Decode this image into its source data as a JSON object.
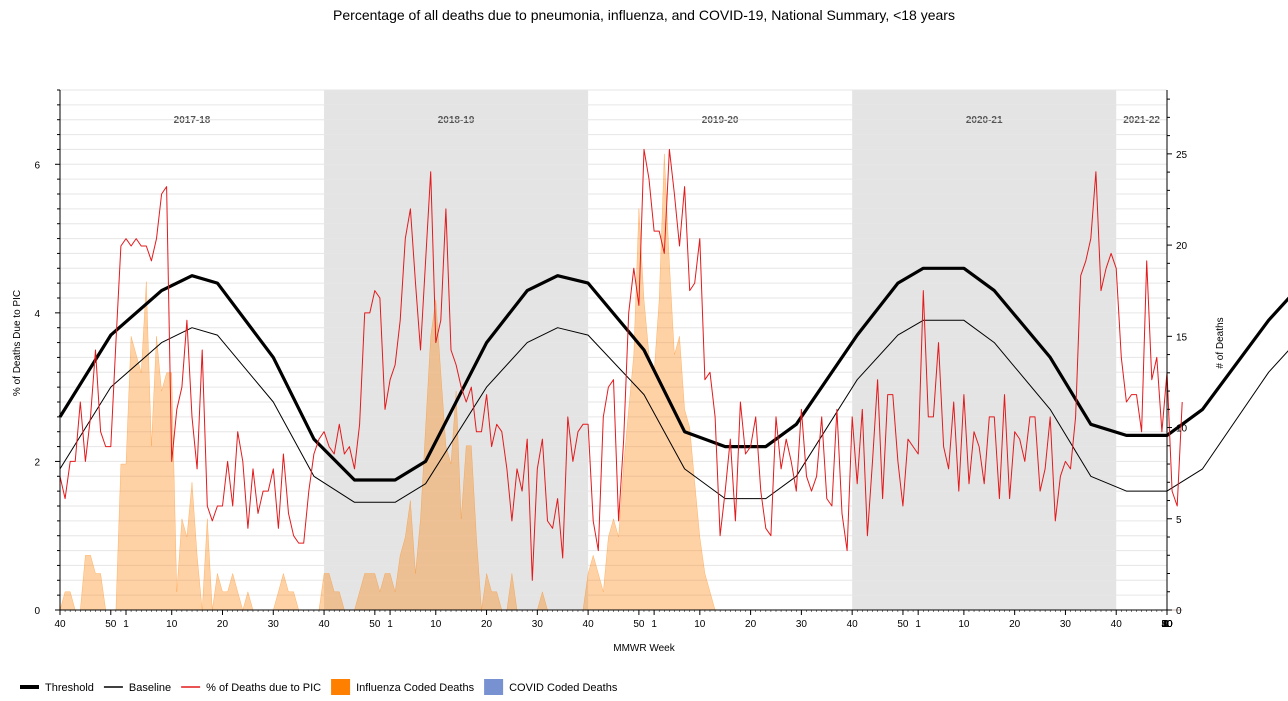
{
  "chart_data": {
    "type": "line",
    "title": "Percentage of all deaths due to pneumonia, influenza, and COVID-19, National Summary, <18 years",
    "xlabel": "MMWR Week",
    "ylabel_left": "% of Deaths Due to PIC",
    "ylabel_right": "# of Deaths",
    "ylim_left": [
      0,
      7
    ],
    "ylim_right": [
      0,
      28.5
    ],
    "left_ticks": [
      0,
      2,
      4,
      6
    ],
    "right_ticks": [
      0,
      5,
      10,
      15,
      20,
      25
    ],
    "grid": true,
    "legend_position": "bottom-left",
    "x_tick_labels": [
      "40",
      "50",
      "1",
      "10",
      "20",
      "30",
      "40",
      "50",
      "1",
      "10",
      "20",
      "30",
      "40",
      "50",
      "1",
      "10",
      "20",
      "30",
      "40",
      "50",
      "1",
      "10",
      "20",
      "30",
      "40",
      "50",
      "1",
      "10",
      "20",
      "30",
      "40",
      "50",
      "1"
    ],
    "seasons": [
      {
        "label": "2017-18",
        "shaded": false
      },
      {
        "label": "2018-19",
        "shaded": true
      },
      {
        "label": "2019-20",
        "shaded": false
      },
      {
        "label": "2020-21",
        "shaded": true
      },
      {
        "label": "2021-22",
        "shaded": false
      }
    ],
    "series": [
      {
        "name": "Threshold",
        "color": "#000000",
        "style": "thick-line",
        "points": [
          [
            0,
            2.6
          ],
          [
            10,
            3.7
          ],
          [
            20,
            4.3
          ],
          [
            26,
            4.5
          ],
          [
            31,
            4.4
          ],
          [
            42,
            3.4
          ],
          [
            50,
            2.3
          ],
          [
            58,
            1.75
          ],
          [
            66,
            1.75
          ],
          [
            72,
            2.0
          ],
          [
            84,
            3.6
          ],
          [
            92,
            4.3
          ],
          [
            98,
            4.5
          ],
          [
            104,
            4.4
          ],
          [
            115,
            3.5
          ],
          [
            123,
            2.4
          ],
          [
            131,
            2.2
          ],
          [
            139,
            2.2
          ],
          [
            145,
            2.5
          ],
          [
            157,
            3.7
          ],
          [
            165,
            4.4
          ],
          [
            170,
            4.6
          ],
          [
            178,
            4.6
          ],
          [
            184,
            4.3
          ],
          [
            195,
            3.4
          ],
          [
            203,
            2.5
          ],
          [
            210,
            2.35
          ],
          [
            218,
            2.35
          ],
          [
            225,
            2.7
          ],
          [
            238,
            3.9
          ],
          [
            246,
            4.5
          ],
          [
            252,
            4.7
          ],
          [
            258,
            4.7
          ],
          [
            264,
            4.4
          ],
          [
            275,
            3.5
          ],
          [
            283,
            2.6
          ],
          [
            290,
            2.4
          ],
          [
            298,
            2.4
          ],
          [
            305,
            2.7
          ],
          [
            318,
            3.9
          ],
          [
            326,
            4.4
          ]
        ]
      },
      {
        "name": "Baseline",
        "color": "#000000",
        "style": "thin-line",
        "points": [
          [
            0,
            1.9
          ],
          [
            10,
            3.0
          ],
          [
            20,
            3.6
          ],
          [
            26,
            3.8
          ],
          [
            31,
            3.7
          ],
          [
            42,
            2.8
          ],
          [
            50,
            1.8
          ],
          [
            58,
            1.45
          ],
          [
            66,
            1.45
          ],
          [
            72,
            1.7
          ],
          [
            84,
            3.0
          ],
          [
            92,
            3.6
          ],
          [
            98,
            3.8
          ],
          [
            104,
            3.7
          ],
          [
            115,
            2.9
          ],
          [
            123,
            1.9
          ],
          [
            131,
            1.5
          ],
          [
            139,
            1.5
          ],
          [
            145,
            1.8
          ],
          [
            157,
            3.1
          ],
          [
            165,
            3.7
          ],
          [
            170,
            3.9
          ],
          [
            178,
            3.9
          ],
          [
            184,
            3.6
          ],
          [
            195,
            2.7
          ],
          [
            203,
            1.8
          ],
          [
            210,
            1.6
          ],
          [
            218,
            1.6
          ],
          [
            225,
            1.9
          ],
          [
            238,
            3.2
          ],
          [
            246,
            3.8
          ],
          [
            252,
            4.0
          ],
          [
            258,
            4.0
          ],
          [
            264,
            3.7
          ],
          [
            275,
            2.8
          ],
          [
            283,
            1.9
          ],
          [
            290,
            1.7
          ],
          [
            298,
            1.7
          ],
          [
            305,
            2.0
          ],
          [
            318,
            3.2
          ],
          [
            326,
            3.7
          ]
        ]
      },
      {
        "name": "% of Deaths due to PIC",
        "color": "#e31a1c",
        "style": "line",
        "values": [
          1.8,
          1.5,
          2.0,
          2.0,
          2.8,
          2.0,
          2.6,
          3.5,
          2.4,
          2.2,
          2.2,
          3.6,
          4.9,
          5.0,
          4.9,
          5.0,
          4.9,
          4.9,
          4.7,
          5.0,
          5.6,
          5.7,
          2.0,
          2.7,
          3.0,
          3.9,
          2.6,
          1.9,
          3.5,
          1.4,
          1.2,
          1.4,
          1.4,
          2.0,
          1.4,
          2.4,
          2.0,
          1.1,
          1.9,
          1.3,
          1.6,
          1.6,
          1.9,
          1.1,
          2.1,
          1.3,
          1.0,
          0.9,
          0.9,
          1.6,
          2.1,
          2.3,
          2.4,
          2.2,
          2.1,
          2.5,
          2.1,
          2.2,
          1.9,
          2.5,
          4.0,
          4.0,
          4.3,
          4.2,
          2.7,
          3.1,
          3.3,
          3.9,
          5.0,
          5.4,
          4.4,
          3.5,
          4.7,
          5.9,
          3.6,
          3.9,
          5.4,
          3.5,
          3.3,
          3.0,
          2.8,
          3.0,
          2.4,
          2.4,
          2.9,
          2.2,
          2.5,
          2.4,
          1.9,
          1.2,
          1.9,
          1.6,
          2.3,
          0.4,
          1.9,
          2.3,
          1.2,
          1.1,
          1.5,
          0.7,
          2.6,
          2.0,
          2.4,
          2.5,
          2.5,
          1.2,
          0.8,
          2.6,
          3.0,
          3.1,
          1.2,
          2.3,
          4.0,
          4.6,
          4.1,
          6.2,
          5.8,
          5.1,
          5.1,
          4.8,
          6.2,
          5.6,
          4.9,
          5.7,
          4.3,
          4.4,
          5.0,
          3.1,
          3.2,
          2.6,
          1.0,
          1.6,
          2.3,
          1.2,
          2.8,
          2.1,
          2.2,
          2.6,
          1.6,
          1.1,
          1.0,
          2.6,
          1.9,
          2.3,
          2.0,
          1.6,
          2.7,
          1.8,
          1.6,
          1.8,
          2.6,
          1.5,
          1.4,
          2.7,
          1.3,
          0.8,
          2.6,
          1.7,
          2.7,
          1.0,
          2.0,
          3.1,
          1.5,
          2.9,
          2.9,
          2.0,
          1.4,
          2.3,
          2.2,
          2.1,
          4.3,
          2.6,
          2.6,
          3.6,
          2.2,
          1.9,
          2.8,
          1.6,
          2.9,
          1.7,
          2.4,
          2.2,
          1.7,
          2.6,
          2.6,
          1.5,
          2.9,
          1.5,
          2.4,
          2.3,
          2.0,
          2.6,
          2.6,
          1.6,
          1.9,
          2.6,
          1.2,
          1.8,
          2.0,
          1.9,
          2.6,
          4.5,
          4.7,
          5.0,
          5.9,
          4.3,
          4.6,
          4.8,
          4.6,
          3.4,
          2.8,
          2.9,
          2.9,
          2.4,
          4.7,
          3.1,
          3.4,
          2.4,
          3.2,
          1.6,
          1.4,
          2.8
        ]
      },
      {
        "name": "Influenza Coded Deaths",
        "color": "#ff7f00",
        "style": "area",
        "axis": "right",
        "values": [
          0,
          1,
          1,
          0,
          0,
          3,
          3,
          2,
          2,
          0,
          0,
          0,
          8,
          8,
          15,
          14,
          13,
          18,
          9,
          15,
          12,
          13,
          13,
          1,
          5,
          4,
          7,
          3,
          0,
          5,
          0,
          2,
          1,
          1,
          2,
          1,
          0,
          1,
          0,
          0,
          0,
          0,
          0,
          1,
          2,
          1,
          1,
          0,
          0,
          0,
          0,
          0,
          2,
          2,
          1,
          1,
          0,
          0,
          0,
          1,
          2,
          2,
          2,
          1,
          2,
          2,
          1,
          3,
          4,
          6,
          2,
          5,
          10,
          15,
          17,
          13,
          9,
          8,
          12,
          5,
          9,
          9,
          4,
          0,
          2,
          1,
          1,
          0,
          0,
          2,
          0,
          0,
          0,
          0,
          0,
          1,
          0,
          0,
          0,
          0,
          0,
          0,
          0,
          0,
          2,
          3,
          2,
          1,
          4,
          5,
          4,
          8,
          11,
          14,
          22,
          17,
          14,
          13,
          17,
          25,
          19,
          14,
          15,
          11,
          10,
          7,
          4,
          2,
          1,
          0,
          0,
          0,
          0,
          0,
          0,
          0,
          0,
          0,
          0,
          0,
          0,
          0,
          0,
          0,
          0,
          0,
          0,
          0,
          0,
          0,
          0,
          0,
          0,
          0,
          0,
          0,
          0,
          0,
          0,
          0,
          0,
          0,
          0,
          0,
          0,
          0,
          0,
          0,
          0,
          0,
          0,
          0,
          0,
          0,
          0,
          0,
          0,
          0,
          0,
          0,
          0,
          0,
          0,
          0,
          0,
          0,
          0,
          0,
          0,
          0,
          0,
          0,
          0,
          0,
          0,
          0,
          0,
          0,
          0,
          0,
          0,
          0,
          0,
          0,
          0,
          0,
          0,
          0,
          0,
          0,
          0,
          0,
          0,
          0,
          0,
          0,
          0,
          0,
          0,
          0,
          0,
          0
        ]
      },
      {
        "name": "COVID Coded Deaths",
        "color": "#7891d0",
        "style": "area",
        "axis": "right",
        "values": [
          0,
          0,
          0,
          0,
          0,
          0,
          0,
          0,
          0,
          0,
          0,
          0,
          0,
          0,
          0,
          0,
          0,
          0,
          0,
          0,
          0,
          0,
          0,
          0,
          0,
          0,
          0,
          0,
          0,
          0,
          0,
          0,
          0,
          0,
          0,
          0,
          0,
          0,
          0,
          0,
          0,
          0,
          0,
          0,
          0,
          0,
          0,
          0,
          0,
          0,
          0,
          0,
          0,
          0,
          0,
          0,
          0,
          0,
          0,
          0,
          0,
          0,
          0,
          0,
          0,
          0,
          0,
          0,
          0,
          0,
          0,
          0,
          0,
          0,
          0,
          0,
          0,
          0,
          0,
          0,
          0,
          0,
          0,
          0,
          0,
          0,
          0,
          0,
          0,
          0,
          0,
          0,
          0,
          0,
          0,
          0,
          0,
          0,
          0,
          0,
          0,
          0,
          0,
          0,
          0,
          0,
          0,
          0,
          0,
          0,
          0,
          0,
          0,
          0,
          0,
          0,
          0,
          0,
          0,
          0,
          0,
          0,
          0,
          0,
          0,
          0,
          0,
          0,
          0,
          0,
          0,
          0,
          0,
          0,
          0,
          0,
          0,
          0,
          0,
          0,
          0,
          0,
          0,
          0,
          0,
          0,
          0,
          0,
          0,
          0,
          0,
          0,
          0,
          0,
          0,
          0,
          0,
          0,
          0,
          0,
          0,
          0,
          0,
          0,
          0,
          0,
          0,
          0,
          0,
          0,
          0,
          0,
          0,
          0,
          0,
          0,
          0,
          0,
          0,
          0,
          0,
          0,
          0,
          0,
          0,
          0,
          0,
          0,
          0,
          0,
          0,
          0,
          0,
          0,
          0,
          0,
          0,
          0,
          0,
          0,
          0,
          0,
          0,
          0,
          0,
          0,
          0,
          0,
          0,
          0,
          0,
          0,
          0,
          0,
          0,
          0,
          0,
          0,
          0,
          0,
          0,
          0
        ]
      }
    ]
  },
  "legend": [
    {
      "name": "Threshold",
      "color": "#000000",
      "kind": "thick-line"
    },
    {
      "name": "Baseline",
      "color": "#000000",
      "kind": "thin-line"
    },
    {
      "name": "% of Deaths due to PIC",
      "color": "#e31a1c",
      "kind": "line"
    },
    {
      "name": "Influenza Coded Deaths",
      "color": "#ff7f00",
      "kind": "swatch"
    },
    {
      "name": "COVID Coded Deaths",
      "color": "#7891d0",
      "kind": "swatch"
    }
  ]
}
